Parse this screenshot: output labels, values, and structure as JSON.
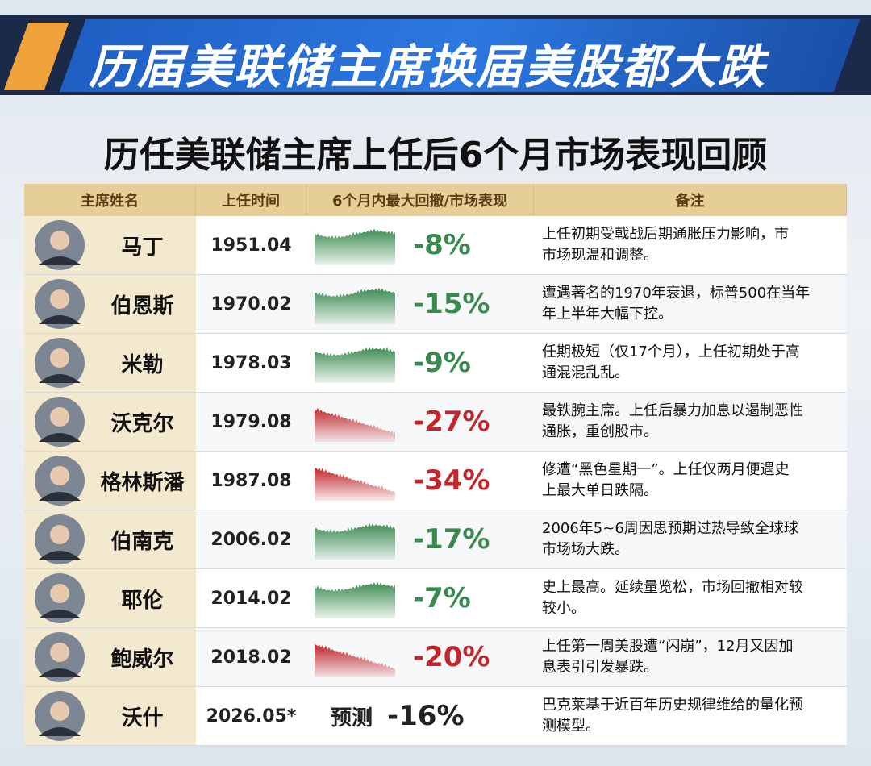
{
  "banner": {
    "title": "历届美联储主席换届美股都大跌"
  },
  "subtitle": "历任美联储主席上任后6个月市场表现回顾",
  "table": {
    "columns": [
      "主席姓名",
      "上任时间",
      "6个月内最大回撤/市场表现",
      "备注"
    ],
    "rows": [
      {
        "name": "马丁",
        "date": "1951.04",
        "drawdown": "-8%",
        "color": "#3a8a4f",
        "notes": [
          "上任初期受戟战后期通胀压力影响，市",
          "市场现温和调整。"
        ]
      },
      {
        "name": "伯恩斯",
        "date": "1970.02",
        "drawdown": "-15%",
        "color": "#3a8a4f",
        "notes": [
          "遭遇著名的1970年衰退，标普500在当年",
          "年上半年大幅下控。"
        ]
      },
      {
        "name": "米勒",
        "date": "1978.03",
        "drawdown": "-9%",
        "color": "#3a8a4f",
        "notes": [
          "任期极短（仅17个月），上任初期处于高",
          "通混混乱乱。"
        ]
      },
      {
        "name": "沃克尔",
        "date": "1979.08",
        "drawdown": "-27%",
        "color": "#c0262b",
        "notes": [
          "最铁腕主席。上任后暴力加息以遏制恶性",
          "通胀，重创股市。"
        ]
      },
      {
        "name": "格林斯潘",
        "date": "1987.08",
        "drawdown": "-34%",
        "color": "#c0262b",
        "notes": [
          "修遭“黑色星期一”。上任仅两月便遇史",
          "上最大单日跌隔。"
        ]
      },
      {
        "name": "伯南克",
        "date": "2006.02",
        "drawdown": "-17%",
        "color": "#3a8a4f",
        "notes": [
          "2006年5~6周因思预期过热导致全球球",
          "市场场大跌。"
        ]
      },
      {
        "name": "耶伦",
        "date": "2014.02",
        "drawdown": "-7%",
        "color": "#3a8a4f",
        "notes": [
          "史上最高。延续量览松，市场回撤相对较",
          "较小。"
        ]
      },
      {
        "name": "鲍威尔",
        "date": "2018.02",
        "drawdown": "-20%",
        "color": "#c0262b",
        "notes": [
          "上任第一周美股遭“闪崩”，12月又因加",
          "息表引引发暴跌。"
        ]
      },
      {
        "name": "沃什",
        "date": "2026.05*",
        "forecast": "预测",
        "drawdown": "-16%",
        "color": "#222222",
        "notes": [
          "巴克莱基于近百年历史规律维给的量化预",
          "测模型。"
        ]
      }
    ]
  }
}
